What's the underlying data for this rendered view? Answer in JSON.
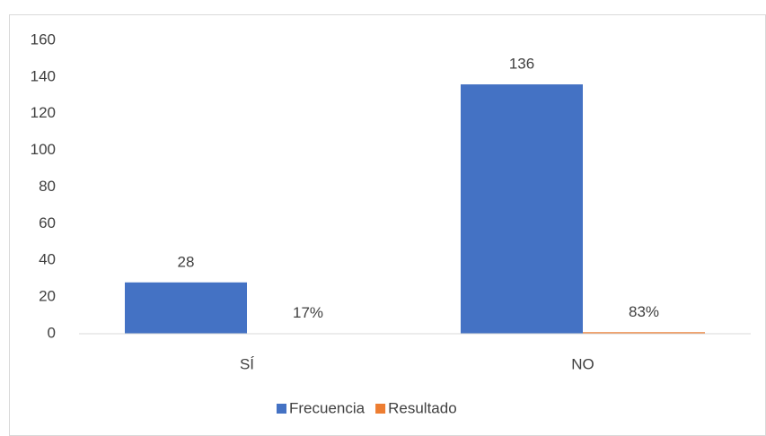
{
  "chart_data": {
    "type": "bar",
    "categories": [
      "SÍ",
      "NO"
    ],
    "series": [
      {
        "name": "Frecuencia",
        "color": "#4472c4",
        "values": [
          28,
          136
        ]
      },
      {
        "name": "Resultado",
        "color": "#ed7d31",
        "values": [
          0.17,
          0.83
        ],
        "value_labels": [
          "17%",
          "83%"
        ]
      }
    ],
    "ylim": [
      0,
      160
    ],
    "yticks": [
      0,
      20,
      40,
      60,
      80,
      100,
      120,
      140,
      160
    ],
    "grid": false,
    "legend": "bottom"
  }
}
